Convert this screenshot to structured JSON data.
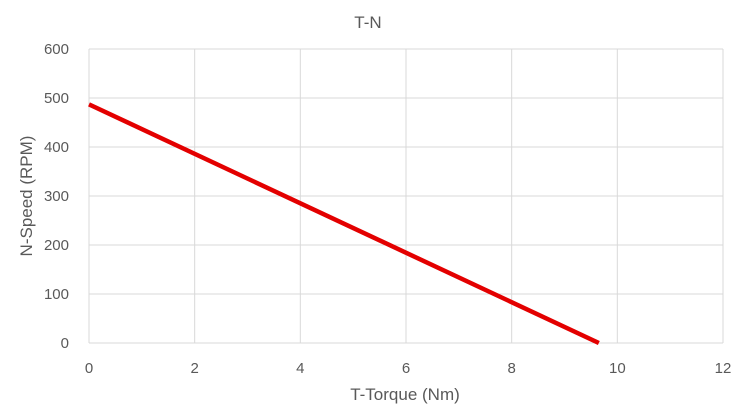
{
  "chart_data": {
    "type": "line",
    "title": "T-N",
    "xlabel": "T-Torque (Nm)",
    "ylabel": "N-Speed (RPM)",
    "xlim": [
      0,
      12
    ],
    "ylim": [
      0,
      600
    ],
    "x_ticks": [
      0,
      2,
      4,
      6,
      8,
      10,
      12
    ],
    "y_ticks": [
      0,
      100,
      200,
      300,
      400,
      500,
      600
    ],
    "grid": true,
    "legend": "none",
    "series": [
      {
        "color": "#e30000",
        "points": [
          {
            "x": 0,
            "y": 487
          },
          {
            "x": 9.65,
            "y": 0
          }
        ]
      }
    ]
  }
}
